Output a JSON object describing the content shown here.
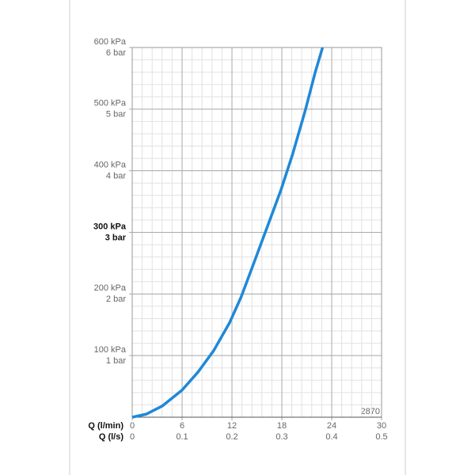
{
  "chart_data": {
    "type": "line",
    "x": [
      0,
      1.7,
      3.6,
      6,
      7.9,
      9.8,
      11.7,
      13.1,
      14.6,
      16.5,
      17.9,
      19.3,
      20.8,
      22,
      22.9
    ],
    "series": [
      {
        "color": "#1f88d8",
        "values": [
          0,
          5,
          18,
          44,
          73,
          108,
          153,
          195,
          249,
          318,
          369,
          427,
          497,
          559,
          600
        ]
      }
    ],
    "xlim": [
      0,
      30
    ],
    "xticks": [
      0,
      6,
      12,
      18,
      24,
      30
    ],
    "xlabel": "Q (l/min)",
    "x2lim": [
      0,
      0.5
    ],
    "x2ticks": [
      0,
      0.1,
      0.2,
      0.3,
      0.4,
      0.5
    ],
    "x2label": "Q (l/s)",
    "ylim": [
      0,
      600
    ],
    "yticks": [
      {
        "value": 100,
        "label": "100 kPa"
      },
      {
        "value": 200,
        "label": "200 kPa"
      },
      {
        "value": 300,
        "label": "300 kPa"
      },
      {
        "value": 400,
        "label": "400 kPa"
      },
      {
        "value": 500,
        "label": "500 kPa"
      },
      {
        "value": 600,
        "label": "600 kPa"
      }
    ],
    "y2lim": [
      0,
      6
    ],
    "y2ticks": [
      {
        "value": 1,
        "label": "1 bar"
      },
      {
        "value": 2,
        "label": "2 bar"
      },
      {
        "value": 3,
        "label": "3 bar"
      },
      {
        "value": 4,
        "label": "4 bar"
      },
      {
        "value": 5,
        "label": "5 bar"
      },
      {
        "value": 6,
        "label": "6 bar"
      }
    ],
    "highlight_ytick": 300,
    "x_minor_step": 1.2,
    "y_minor_step": 20,
    "grid": true,
    "annotation": "2870"
  }
}
